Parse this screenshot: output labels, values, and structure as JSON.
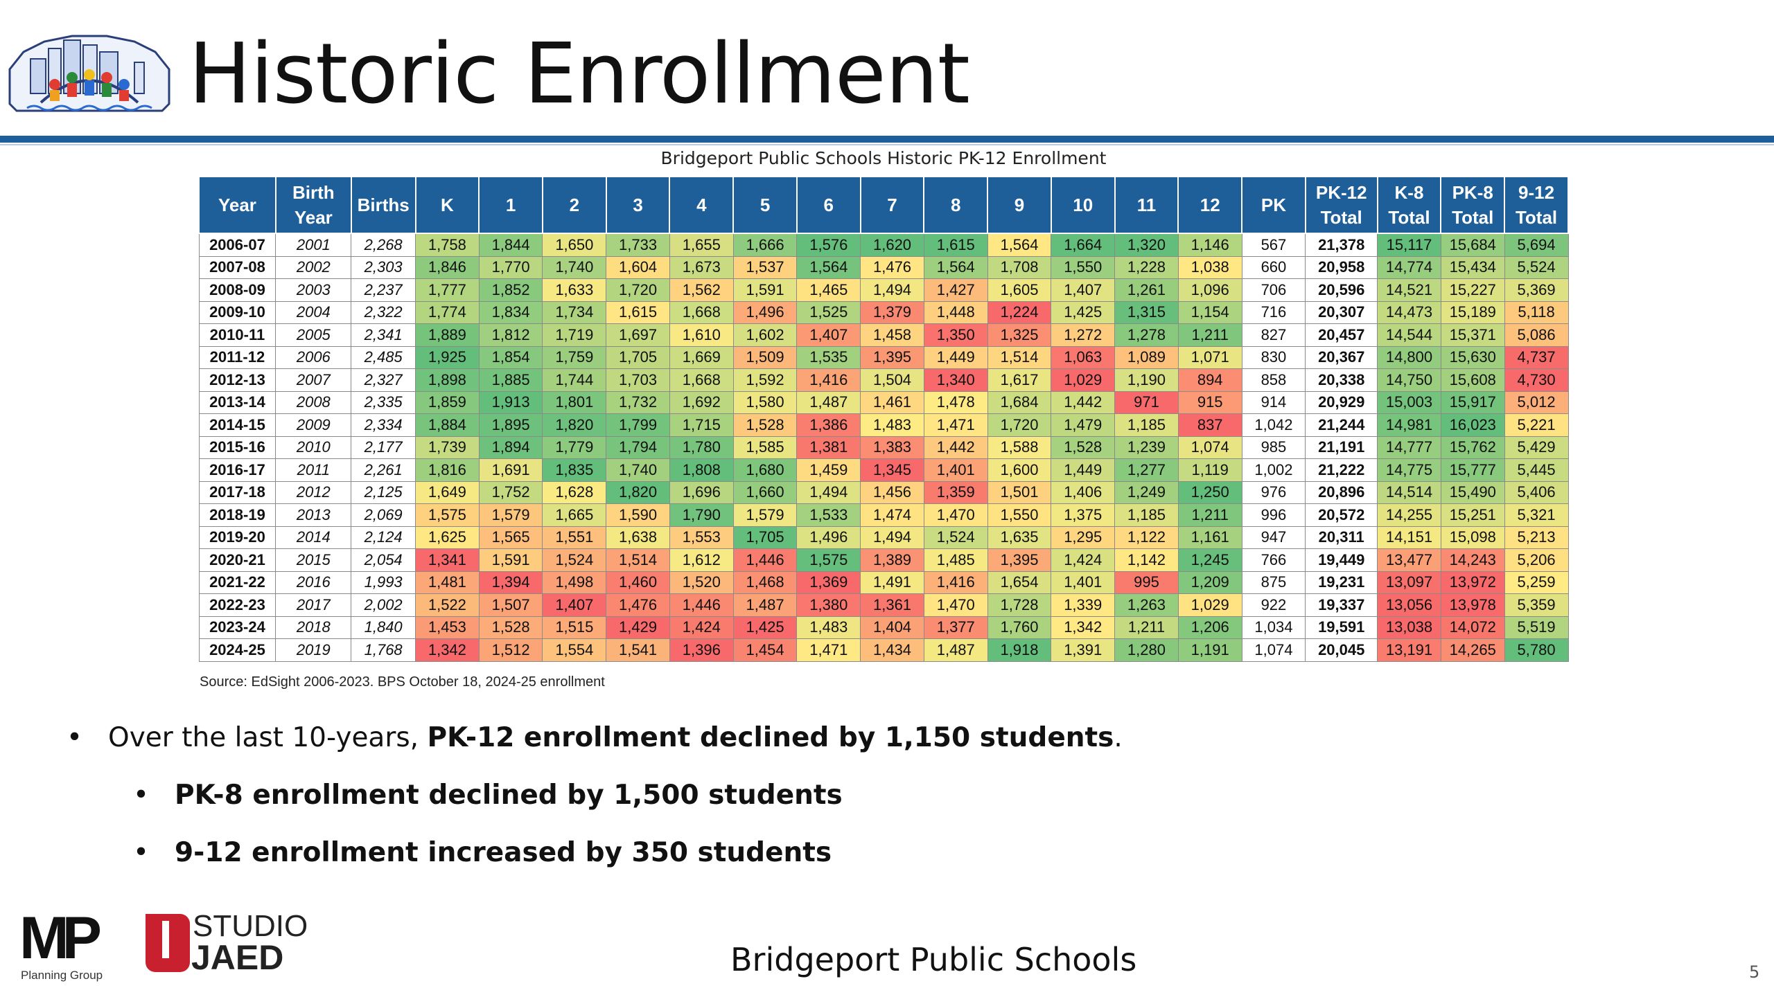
{
  "title": "Historic Enrollment",
  "table_title": "Bridgeport Public Schools Historic PK-12 Enrollment",
  "columns": [
    [
      "Year",
      ""
    ],
    [
      "Birth",
      "Year"
    ],
    [
      "Births",
      ""
    ],
    [
      "K",
      ""
    ],
    [
      "1",
      ""
    ],
    [
      "2",
      ""
    ],
    [
      "3",
      ""
    ],
    [
      "4",
      ""
    ],
    [
      "5",
      ""
    ],
    [
      "6",
      ""
    ],
    [
      "7",
      ""
    ],
    [
      "8",
      ""
    ],
    [
      "9",
      ""
    ],
    [
      "10",
      ""
    ],
    [
      "11",
      ""
    ],
    [
      "12",
      ""
    ],
    [
      "PK",
      ""
    ],
    [
      "PK-12",
      "Total"
    ],
    [
      "K-8",
      "Total"
    ],
    [
      "PK-8",
      "Total"
    ],
    [
      "9-12",
      "Total"
    ]
  ],
  "rows": [
    [
      "2006-07",
      "2001",
      "2,268",
      "1,758",
      "1,844",
      "1,650",
      "1,733",
      "1,655",
      "1,666",
      "1,576",
      "1,620",
      "1,615",
      "1,564",
      "1,664",
      "1,320",
      "1,146",
      "567",
      "21,378",
      "15,117",
      "15,684",
      "5,694"
    ],
    [
      "2007-08",
      "2002",
      "2,303",
      "1,846",
      "1,770",
      "1,740",
      "1,604",
      "1,673",
      "1,537",
      "1,564",
      "1,476",
      "1,564",
      "1,708",
      "1,550",
      "1,228",
      "1,038",
      "660",
      "20,958",
      "14,774",
      "15,434",
      "5,524"
    ],
    [
      "2008-09",
      "2003",
      "2,237",
      "1,777",
      "1,852",
      "1,633",
      "1,720",
      "1,562",
      "1,591",
      "1,465",
      "1,494",
      "1,427",
      "1,605",
      "1,407",
      "1,261",
      "1,096",
      "706",
      "20,596",
      "14,521",
      "15,227",
      "5,369"
    ],
    [
      "2009-10",
      "2004",
      "2,322",
      "1,774",
      "1,834",
      "1,734",
      "1,615",
      "1,668",
      "1,496",
      "1,525",
      "1,379",
      "1,448",
      "1,224",
      "1,425",
      "1,315",
      "1,154",
      "716",
      "20,307",
      "14,473",
      "15,189",
      "5,118"
    ],
    [
      "2010-11",
      "2005",
      "2,341",
      "1,889",
      "1,812",
      "1,719",
      "1,697",
      "1,610",
      "1,602",
      "1,407",
      "1,458",
      "1,350",
      "1,325",
      "1,272",
      "1,278",
      "1,211",
      "827",
      "20,457",
      "14,544",
      "15,371",
      "5,086"
    ],
    [
      "2011-12",
      "2006",
      "2,485",
      "1,925",
      "1,854",
      "1,759",
      "1,705",
      "1,669",
      "1,509",
      "1,535",
      "1,395",
      "1,449",
      "1,514",
      "1,063",
      "1,089",
      "1,071",
      "830",
      "20,367",
      "14,800",
      "15,630",
      "4,737"
    ],
    [
      "2012-13",
      "2007",
      "2,327",
      "1,898",
      "1,885",
      "1,744",
      "1,703",
      "1,668",
      "1,592",
      "1,416",
      "1,504",
      "1,340",
      "1,617",
      "1,029",
      "1,190",
      "894",
      "858",
      "20,338",
      "14,750",
      "15,608",
      "4,730"
    ],
    [
      "2013-14",
      "2008",
      "2,335",
      "1,859",
      "1,913",
      "1,801",
      "1,732",
      "1,692",
      "1,580",
      "1,487",
      "1,461",
      "1,478",
      "1,684",
      "1,442",
      "971",
      "915",
      "914",
      "20,929",
      "15,003",
      "15,917",
      "5,012"
    ],
    [
      "2014-15",
      "2009",
      "2,334",
      "1,884",
      "1,895",
      "1,820",
      "1,799",
      "1,715",
      "1,528",
      "1,386",
      "1,483",
      "1,471",
      "1,720",
      "1,479",
      "1,185",
      "837",
      "1,042",
      "21,244",
      "14,981",
      "16,023",
      "5,221"
    ],
    [
      "2015-16",
      "2010",
      "2,177",
      "1,739",
      "1,894",
      "1,779",
      "1,794",
      "1,780",
      "1,585",
      "1,381",
      "1,383",
      "1,442",
      "1,588",
      "1,528",
      "1,239",
      "1,074",
      "985",
      "21,191",
      "14,777",
      "15,762",
      "5,429"
    ],
    [
      "2016-17",
      "2011",
      "2,261",
      "1,816",
      "1,691",
      "1,835",
      "1,740",
      "1,808",
      "1,680",
      "1,459",
      "1,345",
      "1,401",
      "1,600",
      "1,449",
      "1,277",
      "1,119",
      "1,002",
      "21,222",
      "14,775",
      "15,777",
      "5,445"
    ],
    [
      "2017-18",
      "2012",
      "2,125",
      "1,649",
      "1,752",
      "1,628",
      "1,820",
      "1,696",
      "1,660",
      "1,494",
      "1,456",
      "1,359",
      "1,501",
      "1,406",
      "1,249",
      "1,250",
      "976",
      "20,896",
      "14,514",
      "15,490",
      "5,406"
    ],
    [
      "2018-19",
      "2013",
      "2,069",
      "1,575",
      "1,579",
      "1,665",
      "1,590",
      "1,790",
      "1,579",
      "1,533",
      "1,474",
      "1,470",
      "1,550",
      "1,375",
      "1,185",
      "1,211",
      "996",
      "20,572",
      "14,255",
      "15,251",
      "5,321"
    ],
    [
      "2019-20",
      "2014",
      "2,124",
      "1,625",
      "1,565",
      "1,551",
      "1,638",
      "1,553",
      "1,705",
      "1,496",
      "1,494",
      "1,524",
      "1,635",
      "1,295",
      "1,122",
      "1,161",
      "947",
      "20,311",
      "14,151",
      "15,098",
      "5,213"
    ],
    [
      "2020-21",
      "2015",
      "2,054",
      "1,341",
      "1,591",
      "1,524",
      "1,514",
      "1,612",
      "1,446",
      "1,575",
      "1,389",
      "1,485",
      "1,395",
      "1,424",
      "1,142",
      "1,245",
      "766",
      "19,449",
      "13,477",
      "14,243",
      "5,206"
    ],
    [
      "2021-22",
      "2016",
      "1,993",
      "1,481",
      "1,394",
      "1,498",
      "1,460",
      "1,520",
      "1,468",
      "1,369",
      "1,491",
      "1,416",
      "1,654",
      "1,401",
      "995",
      "1,209",
      "875",
      "19,231",
      "13,097",
      "13,972",
      "5,259"
    ],
    [
      "2022-23",
      "2017",
      "2,002",
      "1,522",
      "1,507",
      "1,407",
      "1,476",
      "1,446",
      "1,487",
      "1,380",
      "1,361",
      "1,470",
      "1,728",
      "1,339",
      "1,263",
      "1,029",
      "922",
      "19,337",
      "13,056",
      "13,978",
      "5,359"
    ],
    [
      "2023-24",
      "2018",
      "1,840",
      "1,453",
      "1,528",
      "1,515",
      "1,429",
      "1,424",
      "1,425",
      "1,483",
      "1,404",
      "1,377",
      "1,760",
      "1,342",
      "1,211",
      "1,206",
      "1,034",
      "19,591",
      "13,038",
      "14,072",
      "5,519"
    ],
    [
      "2024-25",
      "2019",
      "1,768",
      "1,342",
      "1,512",
      "1,554",
      "1,541",
      "1,396",
      "1,454",
      "1,471",
      "1,434",
      "1,487",
      "1,918",
      "1,391",
      "1,280",
      "1,191",
      "1,074",
      "20,045",
      "13,191",
      "14,265",
      "5,780"
    ]
  ],
  "heatmap_columns": [
    3,
    4,
    5,
    6,
    7,
    8,
    9,
    10,
    11,
    12,
    13,
    14,
    15,
    18,
    19,
    20
  ],
  "heatmap_colors": {
    "low": "#f8696b",
    "mid": "#ffeb84",
    "high": "#63be7b"
  },
  "header_color": "#1f5f99",
  "source_note": "Source: EdSight 2006-2023. BPS October 18, 2024-25 enrollment",
  "bullets": {
    "b1_dot": "•",
    "b1_pre": "Over the last 10-years, ",
    "b1_bold": "PK-12 enrollment declined by 1,150 students",
    "b1_post": ".",
    "b2_dot": "•",
    "b2_bold": "PK-8 enrollment declined by 1,500 students",
    "b3_dot": "•",
    "b3_bold": "9-12 enrollment increased by 350 students"
  },
  "mp_logo": {
    "mark": "MP",
    "caption": "Planning Group"
  },
  "jaed_logo": {
    "line1": "STUDIO",
    "line2": "JAED"
  },
  "footer_text": "Bridgeport Public Schools",
  "slide_number": "5"
}
